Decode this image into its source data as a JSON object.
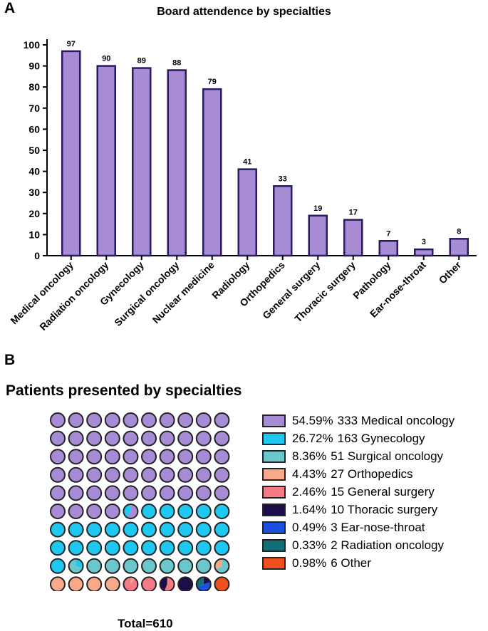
{
  "panel_a": {
    "letter": "A",
    "chart_data": {
      "type": "bar",
      "title": "Board attendence by specialties",
      "categories": [
        "Medical oncology",
        "Radiation oncology",
        "Gynecology",
        "Surgical oncology",
        "Nuclear medicine",
        "Radiology",
        "Orthopedics",
        "General surgery",
        "Thoracic surgery",
        "Pathology",
        "Ear-nose-throat",
        "Other"
      ],
      "values": [
        97,
        90,
        89,
        88,
        79,
        41,
        33,
        19,
        17,
        7,
        3,
        8
      ],
      "ylim": [
        0,
        100
      ],
      "yticks": [
        0,
        10,
        20,
        30,
        40,
        50,
        60,
        70,
        80,
        90,
        100
      ],
      "xlabel": "",
      "ylabel": "",
      "bar_color": "#a78bd4",
      "bar_edge": "#2a1a5e"
    }
  },
  "panel_b": {
    "letter": "B",
    "title": "Patients presented by specialties",
    "total_label": "Total=610",
    "chart_data": {
      "type": "waffle",
      "grid": [
        10,
        10
      ],
      "legend": [
        {
          "pct": "54.59%",
          "label": "333 Medical oncology",
          "color": "#a78bd4",
          "cells": 54.59
        },
        {
          "pct": "26.72%",
          "label": "163 Gynecology",
          "color": "#1ec8f0",
          "cells": 26.72
        },
        {
          "pct": "8.36%",
          "label": "51 Surgical oncology",
          "color": "#6ac8cc",
          "cells": 8.36
        },
        {
          "pct": "4.43%",
          "label": "27 Orthopedics",
          "color": "#f7a98a",
          "cells": 4.43
        },
        {
          "pct": "2.46%",
          "label": "15 General surgery",
          "color": "#f47a86",
          "cells": 2.46
        },
        {
          "pct": "1.64%",
          "label": "10 Thoracic surgery",
          "color": "#1d0e4a",
          "cells": 1.64
        },
        {
          "pct": "0.49%",
          "label": "3 Ear-nose-throat",
          "color": "#1a4fe0",
          "cells": 0.49
        },
        {
          "pct": "0.33%",
          "label": "2 Radiation oncology",
          "color": "#116f78",
          "cells": 0.33
        },
        {
          "pct": "0.98%",
          "label": "6 Other",
          "color": "#f0501e",
          "cells": 0.98
        }
      ]
    }
  }
}
